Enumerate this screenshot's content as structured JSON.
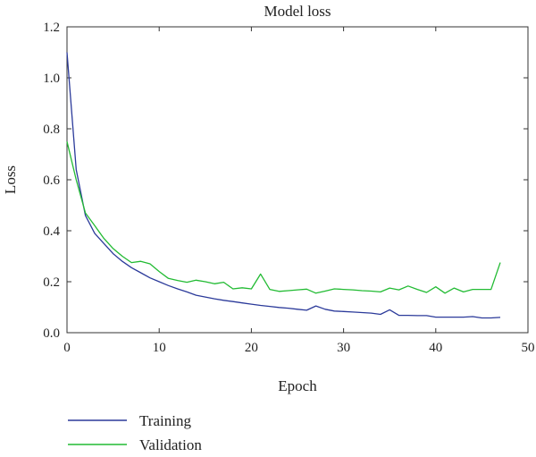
{
  "chart_data": {
    "type": "line",
    "title": "Model loss",
    "xlabel": "Epoch",
    "ylabel": "Loss",
    "xlim": [
      0,
      50
    ],
    "ylim": [
      0,
      1.2
    ],
    "xticks": [
      0,
      10,
      20,
      30,
      40,
      50
    ],
    "yticks": [
      0.0,
      0.2,
      0.4,
      0.6,
      0.8,
      1.0,
      1.2
    ],
    "ytick_labels": [
      "0.0",
      "0.2",
      "0.4",
      "0.6",
      "0.8",
      "1.0",
      "1.2"
    ],
    "grid": false,
    "legend_position": "bottom-left, below plot",
    "x": [
      0,
      1,
      2,
      3,
      4,
      5,
      6,
      7,
      8,
      9,
      10,
      11,
      12,
      13,
      14,
      15,
      16,
      17,
      18,
      19,
      20,
      21,
      22,
      23,
      24,
      25,
      26,
      27,
      28,
      29,
      30,
      31,
      32,
      33,
      34,
      35,
      36,
      37,
      38,
      39,
      40,
      41,
      42,
      43,
      44,
      45,
      46,
      47
    ],
    "series": [
      {
        "name": "Training",
        "color": "#2b3a9a",
        "values": [
          1.1,
          0.64,
          0.46,
          0.39,
          0.35,
          0.31,
          0.28,
          0.255,
          0.235,
          0.215,
          0.2,
          0.185,
          0.172,
          0.16,
          0.147,
          0.14,
          0.133,
          0.127,
          0.122,
          0.117,
          0.112,
          0.107,
          0.103,
          0.099,
          0.096,
          0.092,
          0.088,
          0.105,
          0.092,
          0.085,
          0.083,
          0.081,
          0.079,
          0.077,
          0.072,
          0.09,
          0.068,
          0.068,
          0.067,
          0.067,
          0.061,
          0.061,
          0.061,
          0.061,
          0.063,
          0.058,
          0.058,
          0.06
        ]
      },
      {
        "name": "Validation",
        "color": "#22bb33",
        "values": [
          0.75,
          0.6,
          0.47,
          0.42,
          0.37,
          0.33,
          0.3,
          0.275,
          0.28,
          0.27,
          0.24,
          0.213,
          0.205,
          0.198,
          0.206,
          0.2,
          0.192,
          0.198,
          0.172,
          0.176,
          0.172,
          0.23,
          0.17,
          0.162,
          0.165,
          0.168,
          0.171,
          0.155,
          0.163,
          0.172,
          0.17,
          0.168,
          0.165,
          0.163,
          0.16,
          0.175,
          0.168,
          0.183,
          0.17,
          0.158,
          0.18,
          0.155,
          0.175,
          0.16,
          0.17,
          0.17,
          0.17,
          0.275
        ]
      }
    ]
  }
}
